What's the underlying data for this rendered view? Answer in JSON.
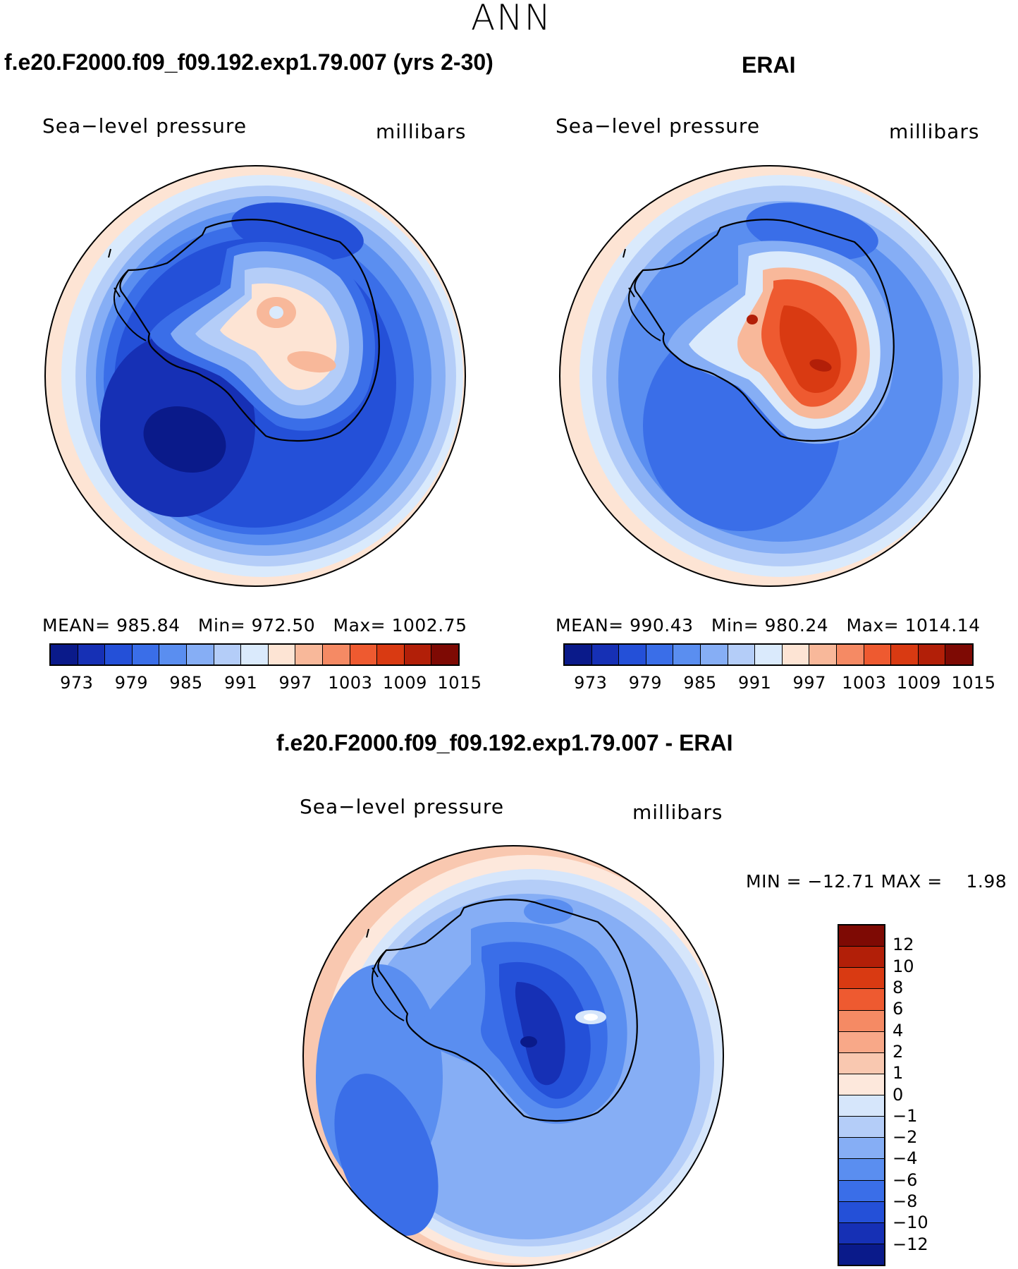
{
  "figure": {
    "season": "ANN",
    "variable": "Sea−level pressure",
    "units": "millibars"
  },
  "panels": [
    {
      "id": "model",
      "title": "f.e20.F2000.f09_f09.192.exp1.79.007 (yrs 2-30)",
      "mean_label": "MEAN=",
      "mean": "985.84",
      "min_label": "Min=",
      "min": "972.50",
      "max_label": "Max=",
      "max": "1002.75"
    },
    {
      "id": "obs",
      "title": "ERAI",
      "mean_label": "MEAN=",
      "mean": "990.43",
      "min_label": "Min=",
      "min": "980.24",
      "max_label": "Max=",
      "max": "1014.14"
    }
  ],
  "diff_panel": {
    "title": "f.e20.F2000.f09_f09.192.exp1.79.007 - ERAI",
    "min_label": "MIN =",
    "min": "−12.71",
    "max_label": "MAX =",
    "max": "1.98"
  },
  "colorbar_main": {
    "tick_labels": [
      "973",
      "979",
      "985",
      "991",
      "997",
      "1003",
      "1009",
      "1015"
    ],
    "colors": [
      "#0a1a8a",
      "#1630b5",
      "#2450d8",
      "#3a6ee8",
      "#5a8ef0",
      "#86aef5",
      "#b4cdf8",
      "#daeafc",
      "#fde4d4",
      "#f8b89a",
      "#f58a64",
      "#ee5a30",
      "#d93a12",
      "#b21f08",
      "#7e0a04"
    ]
  },
  "colorbar_diff": {
    "tick_labels": [
      "12",
      "10",
      "8",
      "6",
      "4",
      "2",
      "1",
      "0",
      "−1",
      "−2",
      "−4",
      "−6",
      "−8",
      "−10",
      "−12"
    ],
    "colors": [
      "#7e0a04",
      "#b21f08",
      "#d93a12",
      "#ee5a30",
      "#f58a64",
      "#f8a888",
      "#f9c8b0",
      "#fde8dc",
      "#d6e6fb",
      "#b4cdf8",
      "#86aef5",
      "#5a8ef0",
      "#3a6ee8",
      "#2450d8",
      "#1630b5",
      "#0a1a8a"
    ]
  }
}
